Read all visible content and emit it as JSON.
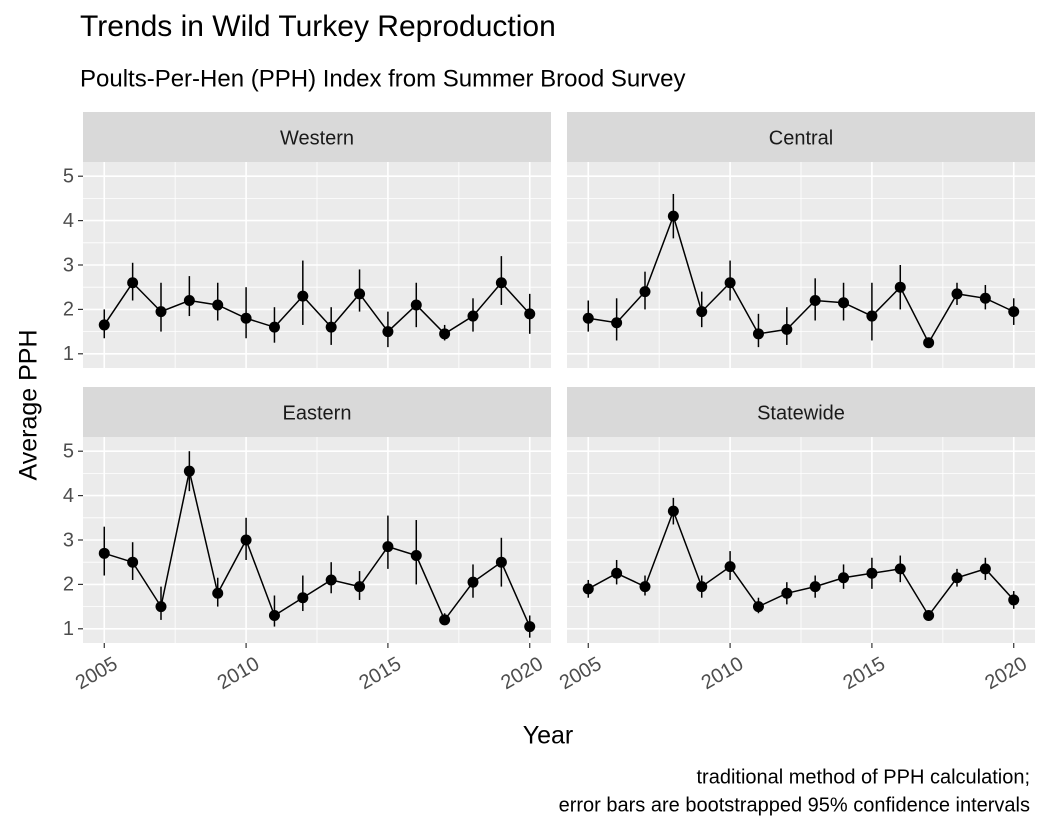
{
  "title": "Trends in Wild Turkey Reproduction",
  "subtitle": "Poults-Per-Hen (PPH) Index from Summer Brood Survey",
  "xlabel": "Year",
  "ylabel": "Average PPH",
  "caption": [
    "traditional method of PPH calculation;",
    "error bars are bootstrapped 95% confidence intervals"
  ],
  "chart_data": [
    {
      "type": "line",
      "title": "Western",
      "color": "#000000",
      "x": [
        2005,
        2006,
        2007,
        2008,
        2009,
        2010,
        2011,
        2012,
        2013,
        2014,
        2015,
        2016,
        2017,
        2018,
        2019,
        2020
      ],
      "values": [
        1.65,
        2.6,
        1.95,
        2.2,
        2.1,
        1.8,
        1.6,
        2.3,
        1.6,
        2.35,
        1.5,
        2.1,
        1.45,
        1.85,
        2.6,
        1.9
      ],
      "lower": [
        1.35,
        2.2,
        1.5,
        1.85,
        1.75,
        1.35,
        1.25,
        1.65,
        1.2,
        1.95,
        1.15,
        1.6,
        1.3,
        1.5,
        2.1,
        1.45
      ],
      "upper": [
        2.0,
        3.05,
        2.6,
        2.75,
        2.6,
        2.5,
        2.05,
        3.1,
        2.05,
        2.9,
        1.95,
        2.6,
        1.65,
        2.25,
        3.2,
        2.35
      ],
      "xlim": [
        2004.25,
        2020.75
      ],
      "xticks": [
        2005,
        2010,
        2015,
        2020
      ],
      "xminor": [
        2007.5,
        2012.5,
        2017.5
      ],
      "ylim": [
        0.68,
        5.32
      ],
      "yticks": [
        1,
        2,
        3,
        4,
        5
      ],
      "yminor": [
        1.5,
        2.5,
        3.5,
        4.5
      ],
      "grid": true
    },
    {
      "type": "line",
      "title": "Central",
      "color": "#000000",
      "x": [
        2005,
        2006,
        2007,
        2008,
        2009,
        2010,
        2011,
        2012,
        2013,
        2014,
        2015,
        2016,
        2017,
        2018,
        2019,
        2020
      ],
      "values": [
        1.8,
        1.7,
        2.4,
        4.1,
        1.95,
        2.6,
        1.45,
        1.55,
        2.2,
        2.15,
        1.85,
        2.5,
        1.25,
        2.35,
        2.25,
        1.95
      ],
      "lower": [
        1.5,
        1.3,
        2.0,
        3.6,
        1.6,
        2.2,
        1.15,
        1.2,
        1.75,
        1.75,
        1.3,
        2.0,
        1.15,
        2.1,
        2.0,
        1.65
      ],
      "upper": [
        2.2,
        2.25,
        2.85,
        4.6,
        2.4,
        3.1,
        1.9,
        2.05,
        2.7,
        2.6,
        2.6,
        3.0,
        1.35,
        2.6,
        2.55,
        2.25
      ],
      "xlim": [
        2004.25,
        2020.75
      ],
      "xticks": [
        2005,
        2010,
        2015,
        2020
      ],
      "xminor": [
        2007.5,
        2012.5,
        2017.5
      ],
      "ylim": [
        0.68,
        5.32
      ],
      "yticks": [
        1,
        2,
        3,
        4,
        5
      ],
      "yminor": [
        1.5,
        2.5,
        3.5,
        4.5
      ],
      "grid": true
    },
    {
      "type": "line",
      "title": "Eastern",
      "color": "#000000",
      "x": [
        2005,
        2006,
        2007,
        2008,
        2009,
        2010,
        2011,
        2012,
        2013,
        2014,
        2015,
        2016,
        2017,
        2018,
        2019,
        2020
      ],
      "values": [
        2.7,
        2.5,
        1.5,
        4.55,
        1.8,
        3.0,
        1.3,
        1.7,
        2.1,
        1.95,
        2.85,
        2.65,
        1.2,
        2.05,
        2.5,
        1.05
      ],
      "lower": [
        2.2,
        2.1,
        1.2,
        4.1,
        1.5,
        2.55,
        1.05,
        1.4,
        1.8,
        1.65,
        2.35,
        2.0,
        1.1,
        1.7,
        1.95,
        0.8
      ],
      "upper": [
        3.3,
        2.95,
        1.95,
        5.0,
        2.15,
        3.5,
        1.75,
        2.2,
        2.5,
        2.3,
        3.55,
        3.45,
        1.35,
        2.45,
        3.05,
        1.3
      ],
      "xlim": [
        2004.25,
        2020.75
      ],
      "xticks": [
        2005,
        2010,
        2015,
        2020
      ],
      "xminor": [
        2007.5,
        2012.5,
        2017.5
      ],
      "ylim": [
        0.68,
        5.32
      ],
      "yticks": [
        1,
        2,
        3,
        4,
        5
      ],
      "yminor": [
        1.5,
        2.5,
        3.5,
        4.5
      ],
      "grid": true
    },
    {
      "type": "line",
      "title": "Statewide",
      "color": "#000000",
      "x": [
        2005,
        2006,
        2007,
        2008,
        2009,
        2010,
        2011,
        2012,
        2013,
        2014,
        2015,
        2016,
        2017,
        2018,
        2019,
        2020
      ],
      "values": [
        1.9,
        2.25,
        1.95,
        3.65,
        1.95,
        2.4,
        1.5,
        1.8,
        1.95,
        2.15,
        2.25,
        2.35,
        1.3,
        2.15,
        2.35,
        1.65
      ],
      "lower": [
        1.7,
        2.0,
        1.75,
        3.35,
        1.7,
        2.1,
        1.35,
        1.55,
        1.7,
        1.9,
        1.9,
        2.05,
        1.2,
        1.95,
        2.1,
        1.45
      ],
      "upper": [
        2.1,
        2.55,
        2.2,
        3.95,
        2.2,
        2.75,
        1.7,
        2.05,
        2.2,
        2.45,
        2.6,
        2.65,
        1.4,
        2.35,
        2.6,
        1.85
      ],
      "xlim": [
        2004.25,
        2020.75
      ],
      "xticks": [
        2005,
        2010,
        2015,
        2020
      ],
      "xminor": [
        2007.5,
        2012.5,
        2017.5
      ],
      "ylim": [
        0.68,
        5.32
      ],
      "yticks": [
        1,
        2,
        3,
        4,
        5
      ],
      "yminor": [
        1.5,
        2.5,
        3.5,
        4.5
      ],
      "grid": true
    }
  ]
}
